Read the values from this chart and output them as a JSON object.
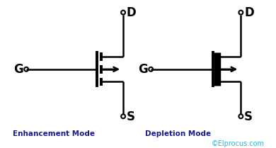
{
  "bg_color": "#ffffff",
  "line_color": "#000000",
  "enhancement_label": "Enhancement Mode",
  "depletion_label": "Depletion Mode",
  "copyright": "©Elprocus.com",
  "copyright_color": "#29b6d4",
  "enhancement_label_color": "#1a1a8c",
  "depletion_label_color": "#1a1a8c",
  "figw": 3.9,
  "figh": 2.09,
  "dpi": 100
}
